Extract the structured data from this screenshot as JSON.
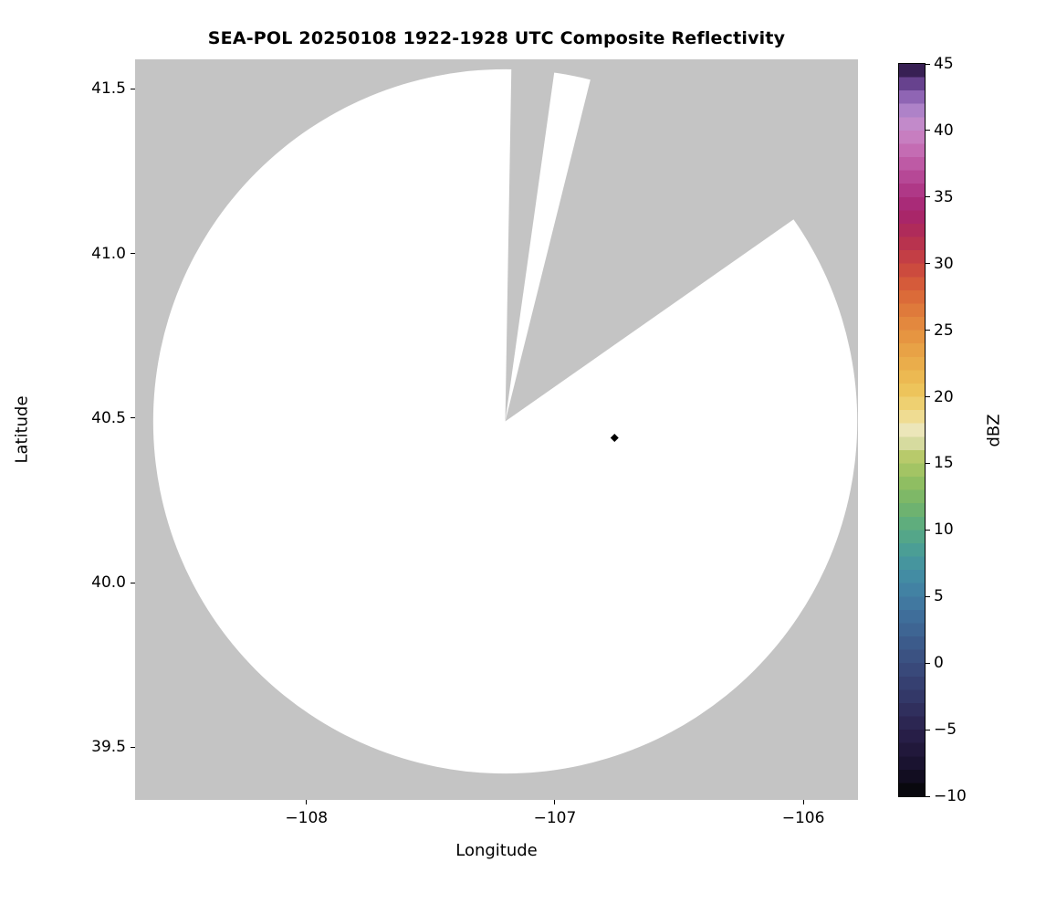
{
  "chart_data": {
    "type": "heatmap",
    "title": "SEA-POL 20250108 1922-1928 UTC Composite Reflectivity",
    "xlabel": "Longitude",
    "ylabel": "Latitude",
    "xlim": [
      -108.69,
      -105.78
    ],
    "ylim": [
      39.34,
      41.59
    ],
    "grid": false,
    "plot_bg": "#c4c4c4",
    "xticks": [
      {
        "value": -108,
        "label": "−108"
      },
      {
        "value": -107,
        "label": "−107"
      },
      {
        "value": -106,
        "label": "−106"
      }
    ],
    "yticks": [
      {
        "value": 41.5,
        "label": "41.5"
      },
      {
        "value": 41.0,
        "label": "41.0"
      },
      {
        "value": 40.5,
        "label": "40.5"
      },
      {
        "value": 40.0,
        "label": "40.0"
      },
      {
        "value": 39.5,
        "label": "39.5"
      }
    ],
    "coverage": {
      "fill": "#ffffff",
      "center_lon": -107.2,
      "center_lat": 40.49,
      "radius_lat_deg": 1.07,
      "blocked_sectors_deg_azimuth": [
        [
          1,
          8
        ],
        [
          14,
          55
        ]
      ]
    },
    "markers": [
      {
        "lon": -106.76,
        "lat": 40.44,
        "shape": "diamond",
        "color": "#000000"
      }
    ],
    "colorbar": {
      "label": "dBZ",
      "vmin": -10,
      "vmax": 45,
      "levels_step": 1,
      "position": "right",
      "ticks": [
        {
          "value": 45,
          "label": "45"
        },
        {
          "value": 40,
          "label": "40"
        },
        {
          "value": 35,
          "label": "35"
        },
        {
          "value": 30,
          "label": "30"
        },
        {
          "value": 25,
          "label": "25"
        },
        {
          "value": 20,
          "label": "20"
        },
        {
          "value": 15,
          "label": "15"
        },
        {
          "value": 10,
          "label": "10"
        },
        {
          "value": 5,
          "label": "5"
        },
        {
          "value": 0,
          "label": "0"
        },
        {
          "value": -5,
          "label": "−5"
        },
        {
          "value": -10,
          "label": "−10"
        }
      ],
      "color_stops": [
        [
          -10,
          "#050505"
        ],
        [
          -8,
          "#16102a"
        ],
        [
          -6,
          "#241a41"
        ],
        [
          -4,
          "#2e2a58"
        ],
        [
          -2,
          "#343c6d"
        ],
        [
          0,
          "#3a4d7e"
        ],
        [
          2,
          "#3d608f"
        ],
        [
          4,
          "#40739e"
        ],
        [
          6,
          "#4287a5"
        ],
        [
          8,
          "#479a9b"
        ],
        [
          10,
          "#58aa83"
        ],
        [
          12,
          "#75b569"
        ],
        [
          14,
          "#98c160"
        ],
        [
          16,
          "#c2cd6f"
        ],
        [
          17,
          "#e9e9cf"
        ],
        [
          18,
          "#efe2a2"
        ],
        [
          20,
          "#eeca60"
        ],
        [
          22,
          "#ebb34d"
        ],
        [
          24,
          "#e79c43"
        ],
        [
          26,
          "#e1813c"
        ],
        [
          28,
          "#d96338"
        ],
        [
          30,
          "#c84340"
        ],
        [
          32,
          "#b22d52"
        ],
        [
          34,
          "#a62470"
        ],
        [
          36,
          "#b23f8e"
        ],
        [
          38,
          "#c263ac"
        ],
        [
          40,
          "#c987c6"
        ],
        [
          41,
          "#bb8dce"
        ],
        [
          42,
          "#a176c1"
        ],
        [
          43,
          "#7c53a6"
        ],
        [
          44,
          "#513075"
        ],
        [
          45,
          "#1f0f33"
        ]
      ]
    }
  }
}
